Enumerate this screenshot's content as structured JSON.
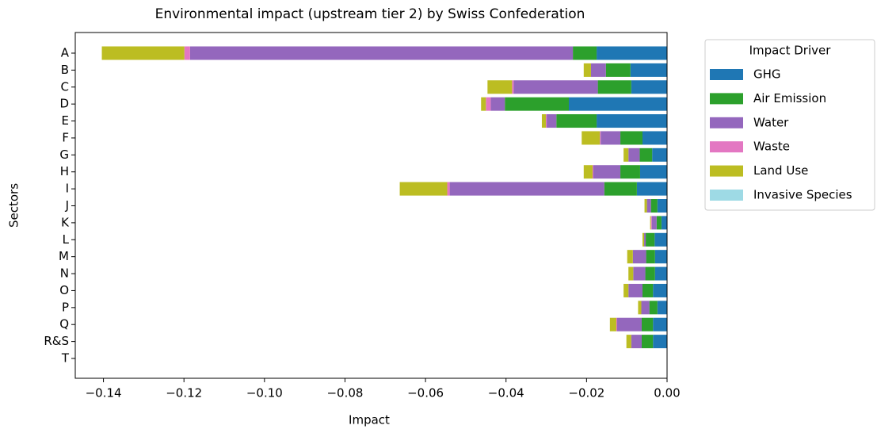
{
  "chart_data": {
    "type": "stacked-barh",
    "title": "Environmental impact (upstream tier 2) by Swiss Confederation",
    "xlabel": "Impact",
    "ylabel": "Sectors",
    "categories": [
      "A",
      "B",
      "C",
      "D",
      "E",
      "F",
      "G",
      "H",
      "I",
      "J",
      "K",
      "L",
      "M",
      "N",
      "O",
      "P",
      "Q",
      "R&S",
      "T"
    ],
    "xlim": [
      -0.147,
      0.0
    ],
    "xticks": [
      {
        "value": -0.14,
        "label": "−0.14"
      },
      {
        "value": -0.12,
        "label": "−0.12"
      },
      {
        "value": -0.1,
        "label": "−0.10"
      },
      {
        "value": -0.08,
        "label": "−0.08"
      },
      {
        "value": -0.06,
        "label": "−0.06"
      },
      {
        "value": -0.04,
        "label": "−0.04"
      },
      {
        "value": -0.02,
        "label": "−0.02"
      },
      {
        "value": 0.0,
        "label": "0.00"
      }
    ],
    "legend_title": "Impact Driver",
    "legend": "outside-upper-right",
    "series": [
      {
        "name": "GHG",
        "color": "#1f77b4",
        "values": [
          -0.0175,
          -0.0091,
          -0.0089,
          -0.0244,
          -0.0175,
          -0.0061,
          -0.0037,
          -0.0067,
          -0.0075,
          -0.0024,
          -0.0014,
          -0.0031,
          -0.003,
          -0.003,
          -0.0035,
          -0.0024,
          -0.0035,
          -0.0035,
          0
        ]
      },
      {
        "name": "Air Emission",
        "color": "#2ca02c",
        "values": [
          -0.0059,
          -0.0061,
          -0.0083,
          -0.0159,
          -0.01,
          -0.0055,
          -0.0031,
          -0.0049,
          -0.0081,
          -0.0016,
          -0.0012,
          -0.0022,
          -0.0022,
          -0.0024,
          -0.0026,
          -0.002,
          -0.0028,
          -0.0028,
          0
        ]
      },
      {
        "name": "Water",
        "color": "#9467bd",
        "values": [
          -0.0951,
          -0.0037,
          -0.0209,
          -0.0035,
          -0.0024,
          -0.0049,
          -0.0028,
          -0.0067,
          -0.0384,
          -0.001,
          -0.0012,
          -0.0004,
          -0.0033,
          -0.003,
          -0.0035,
          -0.002,
          -0.0061,
          -0.0026,
          0
        ]
      },
      {
        "name": "Waste",
        "color": "#e377c2",
        "values": [
          -0.0014,
          0,
          -0.0004,
          -0.0012,
          -0.0002,
          -0.0002,
          0,
          -0.0002,
          -0.0006,
          0,
          -0.0002,
          0,
          0,
          0,
          0,
          0,
          -0.0002,
          0,
          0
        ]
      },
      {
        "name": "Land Use",
        "color": "#bcbd22",
        "values": [
          -0.0205,
          -0.0018,
          -0.0061,
          -0.0012,
          -0.001,
          -0.0045,
          -0.0012,
          -0.0022,
          -0.0118,
          -0.0006,
          -0.0002,
          -0.0004,
          -0.0014,
          -0.0012,
          -0.0012,
          -0.0008,
          -0.0016,
          -0.0012,
          0
        ]
      },
      {
        "name": "Invasive Species",
        "color": "#9edae5",
        "values": [
          0,
          0,
          0,
          0,
          0,
          0,
          0,
          0,
          0,
          0,
          0,
          0,
          0,
          0,
          0,
          0,
          0,
          0,
          0
        ]
      }
    ]
  }
}
